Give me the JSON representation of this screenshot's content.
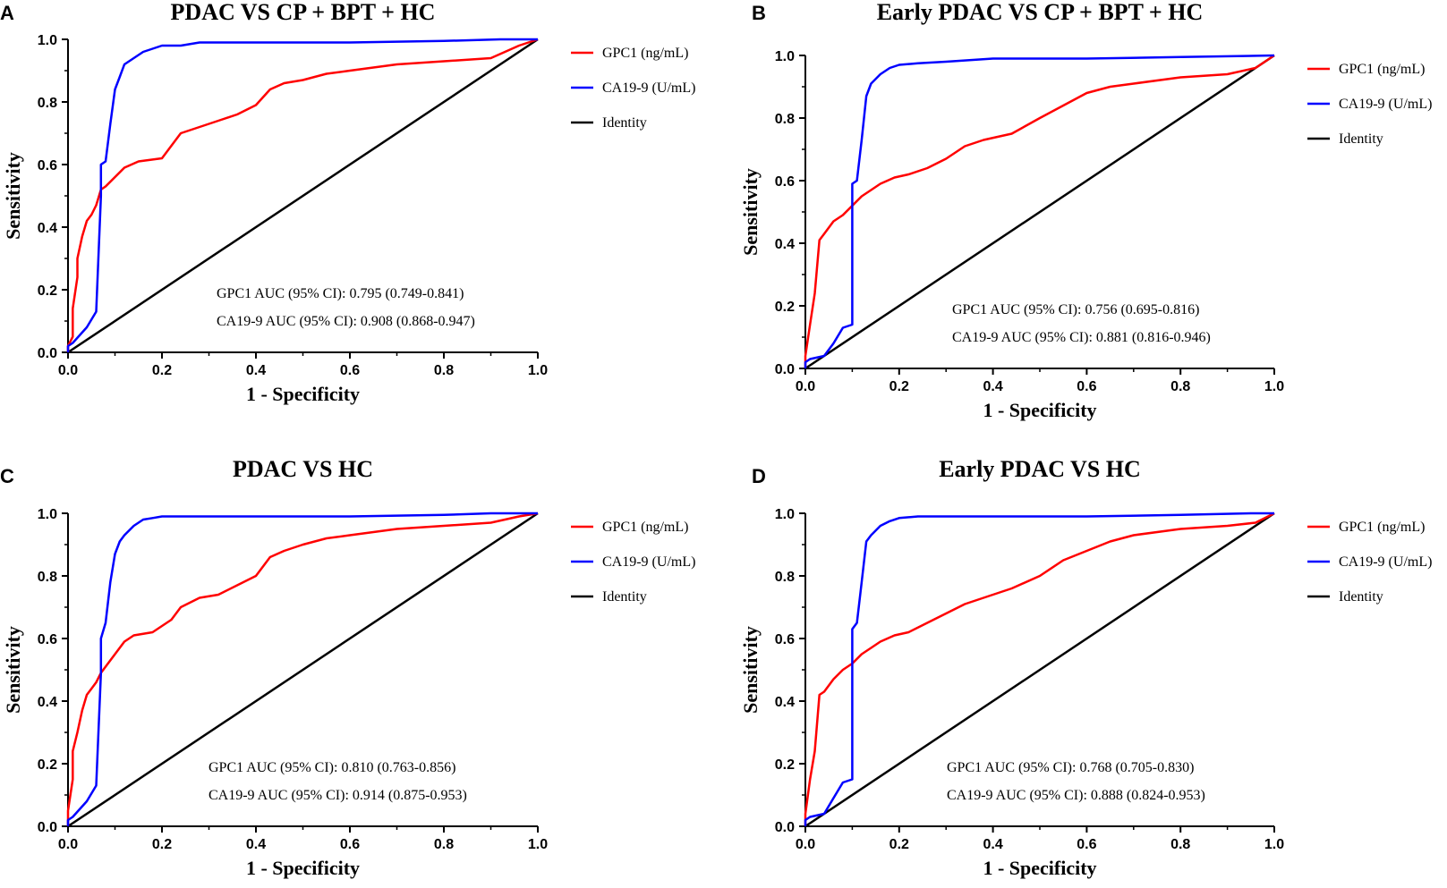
{
  "chart_data": [
    {
      "type": "line",
      "panel_label": "A",
      "title": "PDAC VS CP + BPT + HC",
      "xlabel": "1 - Specificity",
      "ylabel": "Sensitivity",
      "xlim": [
        0,
        1
      ],
      "ylim": [
        0,
        1
      ],
      "xticks": [
        "0.0",
        "0.2",
        "0.4",
        "0.6",
        "0.8",
        "1.0"
      ],
      "yticks": [
        "0.0",
        "0.2",
        "0.4",
        "0.6",
        "0.8",
        "1.0"
      ],
      "legend_position": "right",
      "series": [
        {
          "name": "GPC1 (ng/mL)",
          "color": "#ff0000",
          "x": [
            0,
            0,
            0.01,
            0.01,
            0.02,
            0.02,
            0.03,
            0.04,
            0.05,
            0.06,
            0.07,
            0.08,
            0.1,
            0.12,
            0.15,
            0.2,
            0.22,
            0.24,
            0.28,
            0.32,
            0.36,
            0.4,
            0.43,
            0.46,
            0.5,
            0.55,
            0.6,
            0.7,
            0.8,
            0.9,
            0.93,
            0.96,
            1.0
          ],
          "y": [
            0,
            0.02,
            0.05,
            0.14,
            0.24,
            0.3,
            0.37,
            0.42,
            0.44,
            0.47,
            0.52,
            0.53,
            0.56,
            0.59,
            0.61,
            0.62,
            0.66,
            0.7,
            0.72,
            0.74,
            0.76,
            0.79,
            0.84,
            0.86,
            0.87,
            0.89,
            0.9,
            0.92,
            0.93,
            0.94,
            0.96,
            0.98,
            1.0
          ]
        },
        {
          "name": "CA19-9 (U/mL)",
          "color": "#0000ff",
          "x": [
            0,
            0,
            0.01,
            0.04,
            0.06,
            0.07,
            0.07,
            0.08,
            0.09,
            0.1,
            0.11,
            0.12,
            0.14,
            0.16,
            0.18,
            0.2,
            0.24,
            0.28,
            0.4,
            0.6,
            0.8,
            0.92,
            1.0
          ],
          "y": [
            0,
            0.02,
            0.03,
            0.08,
            0.13,
            0.5,
            0.6,
            0.61,
            0.73,
            0.84,
            0.88,
            0.92,
            0.94,
            0.96,
            0.97,
            0.98,
            0.98,
            0.99,
            0.99,
            0.99,
            0.995,
            1.0,
            1.0
          ]
        },
        {
          "name": "Identity",
          "color": "#000000",
          "x": [
            0,
            1
          ],
          "y": [
            0,
            1
          ]
        }
      ],
      "annotations": [
        "GPC1 AUC (95% CI): 0.795 (0.749-0.841)",
        "CA19-9 AUC (95% CI): 0.908 (0.868-0.947)"
      ]
    },
    {
      "type": "line",
      "panel_label": "B",
      "title": "Early PDAC VS CP + BPT + HC",
      "xlabel": "1 - Specificity",
      "ylabel": "Sensitivity",
      "xlim": [
        0,
        1
      ],
      "ylim": [
        0,
        1
      ],
      "xticks": [
        "0.0",
        "0.2",
        "0.4",
        "0.6",
        "0.8",
        "1.0"
      ],
      "yticks": [
        "0.0",
        "0.2",
        "0.4",
        "0.6",
        "0.8",
        "1.0"
      ],
      "legend_position": "right",
      "series": [
        {
          "name": "GPC1 (ng/mL)",
          "color": "#ff0000",
          "x": [
            0,
            0,
            0.01,
            0.02,
            0.03,
            0.04,
            0.05,
            0.06,
            0.08,
            0.1,
            0.12,
            0.14,
            0.16,
            0.19,
            0.22,
            0.26,
            0.3,
            0.34,
            0.38,
            0.44,
            0.5,
            0.55,
            0.6,
            0.65,
            0.7,
            0.8,
            0.9,
            0.96,
            1.0
          ],
          "y": [
            0,
            0.04,
            0.14,
            0.24,
            0.41,
            0.43,
            0.45,
            0.47,
            0.49,
            0.52,
            0.55,
            0.57,
            0.59,
            0.61,
            0.62,
            0.64,
            0.67,
            0.71,
            0.73,
            0.75,
            0.8,
            0.84,
            0.88,
            0.9,
            0.91,
            0.93,
            0.94,
            0.96,
            1.0
          ]
        },
        {
          "name": "CA19-9 (U/mL)",
          "color": "#0000ff",
          "x": [
            0,
            0,
            0.01,
            0.04,
            0.06,
            0.08,
            0.1,
            0.1,
            0.11,
            0.12,
            0.13,
            0.14,
            0.16,
            0.18,
            0.2,
            0.24,
            0.3,
            0.4,
            0.6,
            0.8,
            1.0
          ],
          "y": [
            0,
            0.02,
            0.03,
            0.04,
            0.08,
            0.13,
            0.14,
            0.59,
            0.6,
            0.73,
            0.87,
            0.91,
            0.94,
            0.96,
            0.97,
            0.975,
            0.98,
            0.99,
            0.99,
            0.995,
            1.0
          ]
        },
        {
          "name": "Identity",
          "color": "#000000",
          "x": [
            0,
            1
          ],
          "y": [
            0,
            1
          ]
        }
      ],
      "annotations": [
        "GPC1 AUC (95% CI): 0.756 (0.695-0.816)",
        "CA19-9 AUC (95% CI): 0.881 (0.816-0.946)"
      ]
    },
    {
      "type": "line",
      "panel_label": "C",
      "title": "PDAC VS HC",
      "xlabel": "1 - Specificity",
      "ylabel": "Sensitivity",
      "xlim": [
        0,
        1
      ],
      "ylim": [
        0,
        1
      ],
      "xticks": [
        "0.0",
        "0.2",
        "0.4",
        "0.6",
        "0.8",
        "1.0"
      ],
      "yticks": [
        "0.0",
        "0.2",
        "0.4",
        "0.6",
        "0.8",
        "1.0"
      ],
      "legend_position": "right",
      "series": [
        {
          "name": "GPC1 (ng/mL)",
          "color": "#ff0000",
          "x": [
            0,
            0,
            0.01,
            0.01,
            0.02,
            0.03,
            0.04,
            0.05,
            0.06,
            0.07,
            0.08,
            0.1,
            0.12,
            0.14,
            0.18,
            0.22,
            0.24,
            0.28,
            0.32,
            0.36,
            0.4,
            0.43,
            0.46,
            0.5,
            0.55,
            0.6,
            0.7,
            0.8,
            0.9,
            0.93,
            0.96,
            1.0
          ],
          "y": [
            0,
            0.05,
            0.15,
            0.24,
            0.3,
            0.37,
            0.42,
            0.44,
            0.46,
            0.49,
            0.51,
            0.55,
            0.59,
            0.61,
            0.62,
            0.66,
            0.7,
            0.73,
            0.74,
            0.77,
            0.8,
            0.86,
            0.88,
            0.9,
            0.92,
            0.93,
            0.95,
            0.96,
            0.97,
            0.98,
            0.99,
            1.0
          ]
        },
        {
          "name": "CA19-9 (U/mL)",
          "color": "#0000ff",
          "x": [
            0,
            0,
            0.01,
            0.04,
            0.06,
            0.07,
            0.07,
            0.08,
            0.09,
            0.1,
            0.11,
            0.12,
            0.14,
            0.16,
            0.18,
            0.2,
            0.28,
            0.4,
            0.6,
            0.8,
            0.9,
            1.0
          ],
          "y": [
            0,
            0.02,
            0.03,
            0.08,
            0.13,
            0.49,
            0.6,
            0.65,
            0.78,
            0.87,
            0.91,
            0.93,
            0.96,
            0.98,
            0.985,
            0.99,
            0.99,
            0.99,
            0.99,
            0.995,
            1.0,
            1.0
          ]
        },
        {
          "name": "Identity",
          "color": "#000000",
          "x": [
            0,
            1
          ],
          "y": [
            0,
            1
          ]
        }
      ],
      "annotations": [
        "GPC1 AUC (95% CI): 0.810 (0.763-0.856)",
        "CA19-9 AUC (95% CI): 0.914 (0.875-0.953)"
      ]
    },
    {
      "type": "line",
      "panel_label": "D",
      "title": "Early PDAC VS HC",
      "xlabel": "1 - Specificity",
      "ylabel": "Sensitivity",
      "xlim": [
        0,
        1
      ],
      "ylim": [
        0,
        1
      ],
      "xticks": [
        "0.0",
        "0.2",
        "0.4",
        "0.6",
        "0.8",
        "1.0"
      ],
      "yticks": [
        "0.0",
        "0.2",
        "0.4",
        "0.6",
        "0.8",
        "1.0"
      ],
      "legend_position": "right",
      "series": [
        {
          "name": "GPC1 (ng/mL)",
          "color": "#ff0000",
          "x": [
            0,
            0,
            0.01,
            0.02,
            0.03,
            0.04,
            0.05,
            0.06,
            0.08,
            0.1,
            0.12,
            0.14,
            0.16,
            0.19,
            0.22,
            0.26,
            0.3,
            0.34,
            0.38,
            0.44,
            0.5,
            0.55,
            0.6,
            0.65,
            0.7,
            0.8,
            0.9,
            0.96,
            1.0
          ],
          "y": [
            0,
            0.04,
            0.15,
            0.24,
            0.42,
            0.43,
            0.45,
            0.47,
            0.5,
            0.52,
            0.55,
            0.57,
            0.59,
            0.61,
            0.62,
            0.65,
            0.68,
            0.71,
            0.73,
            0.76,
            0.8,
            0.85,
            0.88,
            0.91,
            0.93,
            0.95,
            0.96,
            0.97,
            1.0
          ]
        },
        {
          "name": "CA19-9 (U/mL)",
          "color": "#0000ff",
          "x": [
            0,
            0,
            0.01,
            0.04,
            0.06,
            0.08,
            0.1,
            0.1,
            0.11,
            0.12,
            0.13,
            0.14,
            0.16,
            0.18,
            0.2,
            0.24,
            0.3,
            0.4,
            0.6,
            0.8,
            0.95,
            1.0
          ],
          "y": [
            0,
            0.02,
            0.03,
            0.04,
            0.09,
            0.14,
            0.15,
            0.63,
            0.65,
            0.78,
            0.91,
            0.93,
            0.96,
            0.975,
            0.985,
            0.99,
            0.99,
            0.99,
            0.99,
            0.995,
            1.0,
            1.0
          ]
        },
        {
          "name": "Identity",
          "color": "#000000",
          "x": [
            0,
            1
          ],
          "y": [
            0,
            1
          ]
        }
      ],
      "annotations": [
        "GPC1 AUC (95% CI): 0.768 (0.705-0.830)",
        "CA19-9 AUC (95% CI): 0.888 (0.824-0.953)"
      ]
    }
  ]
}
